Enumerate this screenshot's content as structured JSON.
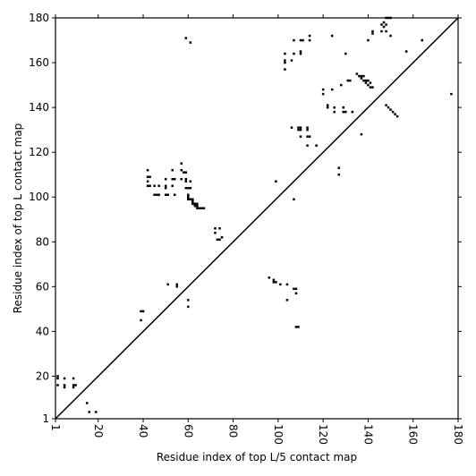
{
  "chart_data": {
    "type": "scatter",
    "xlabel": "Residue index of top L/5 contact map",
    "ylabel": "Residue index of top L contact map",
    "xlim": [
      1,
      180
    ],
    "ylim": [
      1,
      180
    ],
    "xticks": [
      1,
      20,
      40,
      60,
      80,
      100,
      120,
      140,
      160,
      180
    ],
    "yticks": [
      1,
      20,
      40,
      60,
      80,
      100,
      120,
      140,
      160,
      180
    ],
    "color": "#000000",
    "x": [
      59,
      61,
      103,
      103,
      103,
      103,
      106,
      107,
      107,
      110,
      110,
      110,
      111,
      114,
      114,
      124,
      130,
      140,
      142,
      142,
      146,
      146,
      147,
      148,
      149,
      150,
      147,
      148,
      148,
      150,
      164,
      157,
      177,
      120,
      120,
      122,
      122,
      124,
      125,
      125,
      128,
      129,
      129,
      130,
      133,
      137,
      131,
      132,
      135,
      136,
      137,
      138,
      139,
      140,
      141,
      142,
      139,
      140,
      141,
      137,
      138,
      148,
      149,
      150,
      151,
      152,
      153,
      106,
      109,
      110,
      110,
      109,
      110,
      113,
      113,
      113,
      114,
      113,
      117,
      127,
      127,
      99,
      107,
      42,
      42,
      43,
      42,
      42,
      43,
      45,
      47,
      45,
      46,
      47,
      50,
      51,
      50,
      50,
      50,
      53,
      53,
      54,
      53,
      54,
      57,
      57,
      58,
      59,
      57,
      59,
      59,
      59,
      60,
      61,
      61,
      60,
      60,
      60,
      61,
      62,
      62,
      62,
      63,
      64,
      64,
      64,
      65,
      66,
      67,
      63,
      72,
      72,
      74,
      73,
      74,
      75,
      51,
      55,
      55,
      60,
      60,
      39,
      40,
      39,
      96,
      98,
      99,
      98,
      101,
      104,
      107,
      108,
      108,
      104,
      108,
      109,
      2,
      2,
      2,
      5,
      5,
      5,
      9,
      9,
      9,
      10,
      15,
      16,
      19
    ],
    "values": [
      171,
      169,
      164,
      161,
      160,
      157,
      161,
      164,
      170,
      165,
      164,
      170,
      170,
      172,
      170,
      172,
      164,
      170,
      173,
      174,
      174,
      177,
      178,
      180,
      180,
      180,
      176,
      177,
      174,
      172,
      170,
      165,
      146,
      148,
      146,
      141,
      140,
      148,
      140,
      138,
      150,
      140,
      138,
      138,
      138,
      128,
      152,
      152,
      155,
      154,
      153,
      152,
      151,
      150,
      149,
      149,
      152,
      152,
      151,
      154,
      154,
      141,
      140,
      139,
      138,
      137,
      136,
      131,
      131,
      131,
      130,
      130,
      127,
      131,
      130,
      127,
      127,
      123,
      123,
      113,
      110,
      107,
      99,
      112,
      109,
      109,
      107,
      105,
      105,
      105,
      105,
      101,
      101,
      101,
      101,
      101,
      104,
      105,
      108,
      112,
      108,
      108,
      105,
      101,
      115,
      112,
      111,
      111,
      108,
      108,
      107,
      104,
      104,
      107,
      104,
      101,
      100,
      99,
      99,
      99,
      98,
      97,
      97,
      97,
      96,
      95,
      95,
      95,
      95,
      96,
      86,
      84,
      86,
      81,
      81,
      82,
      61,
      61,
      60,
      54,
      51,
      49,
      49,
      45,
      64,
      63,
      62,
      62,
      61,
      61,
      59,
      59,
      57,
      54,
      42,
      42,
      20,
      19,
      16,
      19,
      16,
      15,
      19,
      16,
      15,
      16,
      8,
      4,
      4
    ]
  }
}
